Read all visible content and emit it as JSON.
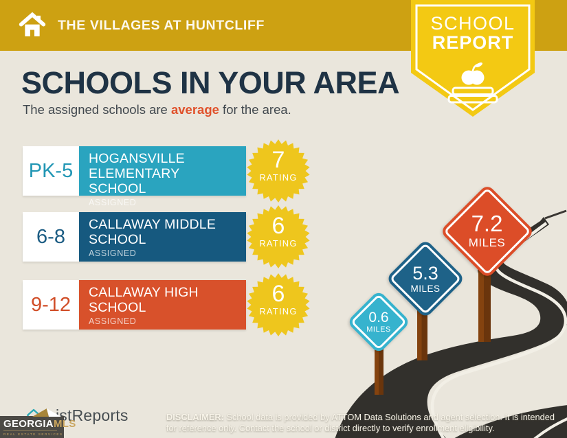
{
  "header": {
    "property_name": "THE VILLAGES AT HUNTCLIFF"
  },
  "report_badge": {
    "line1": "SCHOOL",
    "line2": "REPORT"
  },
  "page": {
    "title": "SCHOOLS IN YOUR AREA",
    "subtitle_prefix": "The assigned schools are ",
    "subtitle_highlight": "average",
    "subtitle_suffix": " for the area."
  },
  "schools": [
    {
      "grades": "PK-5",
      "name": "HOGANSVILLE ELEMENTARY SCHOOL",
      "status": "ASSIGNED",
      "rating": "7",
      "rating_label": "RATING",
      "distance": "0.6",
      "distance_unit": "MILES",
      "bar_color": "#2aa4bf",
      "text_color": "#2196b4",
      "sign_color": "#36b3ce"
    },
    {
      "grades": "6-8",
      "name": "CALLAWAY MIDDLE SCHOOL",
      "status": "ASSIGNED",
      "rating": "6",
      "rating_label": "RATING",
      "distance": "5.3",
      "distance_unit": "MILES",
      "bar_color": "#16597f",
      "text_color": "#1b5c83",
      "sign_color": "#1e6288"
    },
    {
      "grades": "9-12",
      "name": "CALLAWAY HIGH SCHOOL",
      "status": "ASSIGNED",
      "rating": "6",
      "rating_label": "RATING",
      "distance": "7.2",
      "distance_unit": "MILES",
      "bar_color": "#d8512b",
      "text_color": "#d14e28",
      "sign_color": "#dc4d28"
    }
  ],
  "footer": {
    "brand": "ListReports",
    "mls": {
      "name_part1": "GEORGIA",
      "name_part2": "MLS",
      "tagline": "REAL ESTATE SERVICES"
    },
    "disclaimer_label": "DISCLAIMER:",
    "disclaimer_text": " School data is provided by ATTOM Data Solutions and agent selection. It is intended for reference only. Contact the school or district directly to verify enrollment eligibility."
  },
  "colors": {
    "header_gold": "#cda112",
    "accent_yellow": "#f3c913",
    "burst_yellow": "#eec61d",
    "road": "#32302c",
    "title_navy": "#1f3345",
    "highlight_orange": "#e0512b"
  }
}
